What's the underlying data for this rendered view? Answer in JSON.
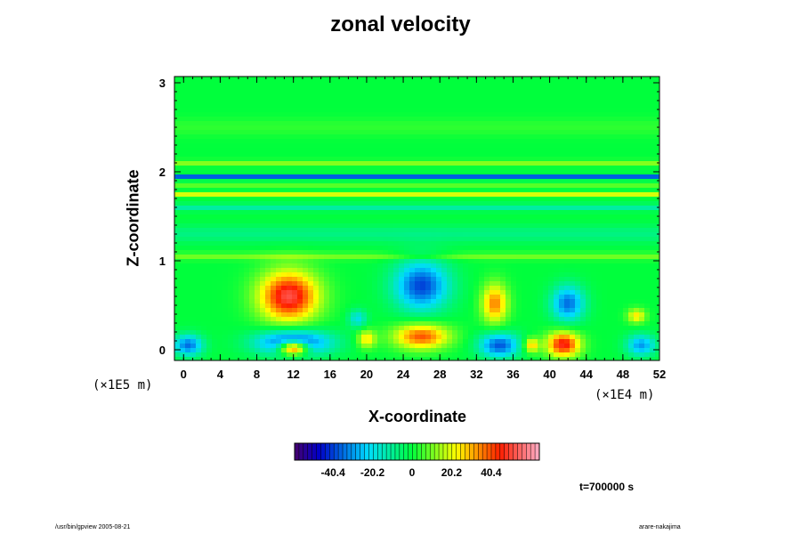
{
  "chart_data": {
    "type": "heatmap",
    "title": "zonal velocity",
    "xlabel": "X-coordinate",
    "ylabel": "Z-coordinate",
    "x_scale_label": "(×1E4 m)",
    "y_scale_label": "(×1E5 m)",
    "xlim": [
      -1,
      52
    ],
    "ylim": [
      -0.12,
      3.07
    ],
    "x_ticks": [
      "0",
      "4",
      "8",
      "12",
      "16",
      "20",
      "24",
      "28",
      "32",
      "36",
      "40",
      "44",
      "48",
      "52"
    ],
    "y_ticks": [
      "0",
      "1",
      "2",
      "3"
    ],
    "colorbar": {
      "range": [
        -60,
        65
      ],
      "ticks": [
        "-40.4",
        "-20.2",
        "0",
        "20.2",
        "40.4"
      ]
    },
    "background_value": 0,
    "features": [
      {
        "x": 0.5,
        "z": 0.05,
        "value": -35,
        "sx": 1.6,
        "sz": 0.12
      },
      {
        "x": 11.5,
        "z": 0.6,
        "value": 52,
        "sx": 3.2,
        "sz": 0.28
      },
      {
        "x": 12.0,
        "z": 0.02,
        "value": 65,
        "sx": 1.6,
        "sz": 0.08
      },
      {
        "x": 12.0,
        "z": 0.08,
        "value": -45,
        "sx": 4.0,
        "sz": 0.14
      },
      {
        "x": 19.0,
        "z": 0.35,
        "value": -20,
        "sx": 1.0,
        "sz": 0.1
      },
      {
        "x": 20.0,
        "z": 0.12,
        "value": 25,
        "sx": 1.0,
        "sz": 0.1
      },
      {
        "x": 26.0,
        "z": 0.72,
        "value": -40,
        "sx": 3.0,
        "sz": 0.28
      },
      {
        "x": 26.0,
        "z": 0.15,
        "value": 40,
        "sx": 3.0,
        "sz": 0.14
      },
      {
        "x": 34.0,
        "z": 0.52,
        "value": 35,
        "sx": 1.4,
        "sz": 0.22
      },
      {
        "x": 34.5,
        "z": 0.05,
        "value": -38,
        "sx": 2.2,
        "sz": 0.14
      },
      {
        "x": 42.0,
        "z": 0.52,
        "value": -35,
        "sx": 1.8,
        "sz": 0.2
      },
      {
        "x": 41.5,
        "z": 0.06,
        "value": 48,
        "sx": 1.8,
        "sz": 0.14
      },
      {
        "x": 49.5,
        "z": 0.38,
        "value": 25,
        "sx": 1.0,
        "sz": 0.08
      },
      {
        "x": 50.0,
        "z": 0.05,
        "value": -30,
        "sx": 1.6,
        "sz": 0.12
      },
      {
        "x": 38.0,
        "z": 0.05,
        "value": 30,
        "sx": 0.8,
        "sz": 0.08
      }
    ],
    "bands": [
      {
        "z": 1.94,
        "value": -38,
        "sz": 0.025
      },
      {
        "z": 1.84,
        "value": 8,
        "sz": 0.02
      },
      {
        "z": 1.75,
        "value": 20,
        "sz": 0.02
      },
      {
        "z": 1.6,
        "value": -12,
        "sz": 0.04
      },
      {
        "z": 2.1,
        "value": 12,
        "sz": 0.03
      },
      {
        "z": 2.5,
        "value": 4,
        "sz": 0.1
      },
      {
        "z": 1.3,
        "value": -8,
        "sz": 0.1
      },
      {
        "z": 1.05,
        "value": 10,
        "sz": 0.04
      }
    ]
  },
  "annotations": {
    "time": "t=700000 s",
    "footer_left": "/usr/bin/gpview 2005-08-21",
    "footer_right": "arare-nakajima"
  }
}
